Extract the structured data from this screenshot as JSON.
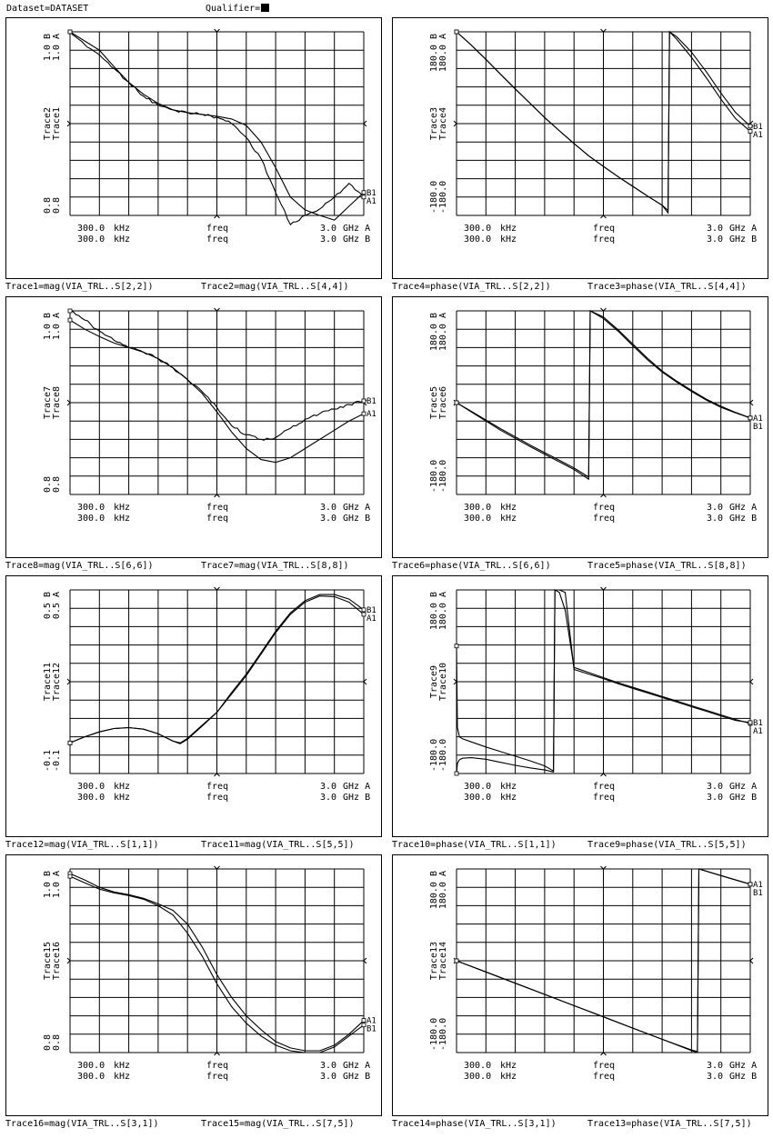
{
  "header": {
    "dataset": "Dataset=DATASET",
    "qualifier": "Qualifier="
  },
  "chart_data": [
    {
      "type": "line",
      "ytop": [
        "1.0 B",
        "1.0 A"
      ],
      "ybottom": [
        "0.8",
        "0.8"
      ],
      "ylabels": [
        "Trace2",
        "Trace1"
      ],
      "xinfo": [
        {
          "start": "300.0",
          "start_unit": "kHz",
          "mid": "freq",
          "stop": "3.0",
          "stop_unit": "GHz A"
        },
        {
          "start": "300.0",
          "start_unit": "kHz",
          "mid": "freq",
          "stop": "3.0",
          "stop_unit": "GHz B"
        }
      ],
      "captions": [
        "Trace1=mag(VIA_TRL..S[2,2])",
        "Trace2=mag(VIA_TRL..S[4,4])"
      ],
      "x": [
        0,
        0.05,
        0.1,
        0.15,
        0.2,
        0.25,
        0.3,
        0.35,
        0.4,
        0.45,
        0.5,
        0.55,
        0.6,
        0.65,
        0.7,
        0.75,
        0.8,
        0.85,
        0.9,
        0.95,
        1
      ],
      "series": [
        {
          "name": "A1",
          "noisy": true,
          "values": [
            1.0,
            0.986,
            0.975,
            0.96,
            0.945,
            0.93,
            0.92,
            0.915,
            0.912,
            0.91,
            0.907,
            0.9,
            0.885,
            0.862,
            0.825,
            0.79,
            0.8,
            0.807,
            0.82,
            0.835,
            0.82
          ]
        },
        {
          "name": "B1",
          "noisy": false,
          "values": [
            1.0,
            0.99,
            0.98,
            0.962,
            0.945,
            0.932,
            0.922,
            0.915,
            0.912,
            0.91,
            0.908,
            0.905,
            0.898,
            0.88,
            0.852,
            0.82,
            0.806,
            0.8,
            0.795,
            0.81,
            0.825
          ]
        }
      ]
    },
    {
      "type": "line",
      "ytop": [
        "180.0 B",
        "180.0 A"
      ],
      "ybottom": [
        "-180.0",
        "-180.0"
      ],
      "ylabels": [
        "Trace3",
        "Trace4"
      ],
      "xinfo": [
        {
          "start": "300.0",
          "start_unit": "kHz",
          "mid": "freq",
          "stop": "3.0",
          "stop_unit": "GHz A"
        },
        {
          "start": "300.0",
          "start_unit": "kHz",
          "mid": "freq",
          "stop": "3.0",
          "stop_unit": "GHz B"
        }
      ],
      "captions": [
        "Trace4=phase(VIA_TRL..S[2,2])",
        "Trace3=phase(VIA_TRL..S[4,4])"
      ],
      "x": [
        0,
        0.05,
        0.1,
        0.15,
        0.2,
        0.25,
        0.3,
        0.35,
        0.4,
        0.45,
        0.5,
        0.55,
        0.6,
        0.65,
        0.7,
        0.72,
        0.725,
        0.75,
        0.8,
        0.85,
        0.9,
        0.95,
        1
      ],
      "series": [
        {
          "name": "A1",
          "noisy": false,
          "values": [
            180,
            154,
            126,
            97,
            68,
            40,
            12,
            -14,
            -39,
            -63,
            -84,
            -104,
            -123,
            -142,
            -160,
            -170,
            180,
            165,
            130,
            90,
            48,
            10,
            -15
          ]
        },
        {
          "name": "B1",
          "noisy": false,
          "values": [
            180,
            154,
            126,
            97,
            68,
            40,
            12,
            -14,
            -39,
            -63,
            -84,
            -104,
            -123,
            -142,
            -160,
            -175,
            180,
            170,
            140,
            102,
            60,
            22,
            -5
          ]
        }
      ]
    },
    {
      "type": "line",
      "ytop": [
        "1.0 B",
        "1.0 A"
      ],
      "ybottom": [
        "0.8",
        "0.8"
      ],
      "ylabels": [
        "Trace7",
        "Trace8"
      ],
      "xinfo": [
        {
          "start": "300.0",
          "start_unit": "kHz",
          "mid": "freq",
          "stop": "3.0",
          "stop_unit": "GHz A"
        },
        {
          "start": "300.0",
          "start_unit": "kHz",
          "mid": "freq",
          "stop": "3.0",
          "stop_unit": "GHz B"
        }
      ],
      "captions": [
        "Trace8=mag(VIA_TRL..S[6,6])",
        "Trace7=mag(VIA_TRL..S[8,8])"
      ],
      "x": [
        0,
        0.05,
        0.1,
        0.15,
        0.2,
        0.25,
        0.3,
        0.35,
        0.4,
        0.45,
        0.5,
        0.55,
        0.6,
        0.65,
        0.7,
        0.75,
        0.8,
        0.85,
        0.9,
        0.95,
        1
      ],
      "series": [
        {
          "name": "A1",
          "noisy": false,
          "values": [
            0.99,
            0.98,
            0.972,
            0.965,
            0.96,
            0.955,
            0.948,
            0.938,
            0.925,
            0.91,
            0.89,
            0.868,
            0.85,
            0.838,
            0.835,
            0.84,
            0.85,
            0.86,
            0.87,
            0.88,
            0.888
          ]
        },
        {
          "name": "B1",
          "noisy": true,
          "values": [
            1.0,
            0.99,
            0.978,
            0.968,
            0.96,
            0.955,
            0.948,
            0.938,
            0.925,
            0.912,
            0.895,
            0.875,
            0.865,
            0.86,
            0.862,
            0.872,
            0.882,
            0.888,
            0.893,
            0.898,
            0.902
          ]
        }
      ]
    },
    {
      "type": "line",
      "ytop": [
        "180.0 B",
        "180.0 A"
      ],
      "ybottom": [
        "-180.0",
        "-180.0"
      ],
      "ylabels": [
        "Trace5",
        "Trace6"
      ],
      "xinfo": [
        {
          "start": "300.0",
          "start_unit": "kHz",
          "mid": "freq",
          "stop": "3.0",
          "stop_unit": "GHz A"
        },
        {
          "start": "300.0",
          "start_unit": "kHz",
          "mid": "freq",
          "stop": "3.0",
          "stop_unit": "GHz B"
        }
      ],
      "captions": [
        "Trace6=phase(VIA_TRL..S[6,6])",
        "Trace5=phase(VIA_TRL..S[8,8])"
      ],
      "x": [
        0,
        0.05,
        0.1,
        0.15,
        0.2,
        0.25,
        0.3,
        0.35,
        0.4,
        0.45,
        0.455,
        0.5,
        0.55,
        0.6,
        0.65,
        0.7,
        0.75,
        0.8,
        0.85,
        0.9,
        0.95,
        1
      ],
      "series": [
        {
          "name": "A1",
          "noisy": false,
          "values": [
            0,
            -18,
            -36,
            -54,
            -70,
            -86,
            -101,
            -116,
            -131,
            -150,
            180,
            165,
            140,
            112,
            84,
            60,
            40,
            22,
            5,
            -9,
            -20,
            -30
          ]
        },
        {
          "name": "B1",
          "noisy": false,
          "values": [
            0,
            -17,
            -34,
            -51,
            -67,
            -83,
            -98,
            -113,
            -128,
            -146,
            180,
            168,
            143,
            115,
            87,
            62,
            42,
            24,
            7,
            -7,
            -19,
            -30
          ]
        }
      ]
    },
    {
      "type": "line",
      "ytop": [
        "0.5 B",
        "0.5 A"
      ],
      "ybottom": [
        "-0.1",
        "-0.1"
      ],
      "ylabels": [
        "Trace11",
        "Trace12"
      ],
      "xinfo": [
        {
          "start": "300.0",
          "start_unit": "kHz",
          "mid": "freq",
          "stop": "3.0",
          "stop_unit": "GHz A"
        },
        {
          "start": "300.0",
          "start_unit": "kHz",
          "mid": "freq",
          "stop": "3.0",
          "stop_unit": "GHz B"
        }
      ],
      "captions": [
        "Trace12=mag(VIA_TRL..S[1,1])",
        "Trace11=mag(VIA_TRL..S[5,5])"
      ],
      "x": [
        0,
        0.05,
        0.1,
        0.15,
        0.2,
        0.25,
        0.3,
        0.35,
        0.375,
        0.4,
        0.45,
        0.5,
        0.55,
        0.6,
        0.65,
        0.7,
        0.75,
        0.8,
        0.85,
        0.9,
        0.95,
        1
      ],
      "series": [
        {
          "name": "A1",
          "noisy": false,
          "values": [
            0.0,
            0.02,
            0.036,
            0.047,
            0.05,
            0.045,
            0.03,
            0.006,
            -0.003,
            0.012,
            0.055,
            0.1,
            0.16,
            0.22,
            0.29,
            0.36,
            0.42,
            0.46,
            0.48,
            0.478,
            0.46,
            0.42
          ]
        },
        {
          "name": "B1",
          "noisy": false,
          "values": [
            0.0,
            0.02,
            0.036,
            0.047,
            0.05,
            0.045,
            0.03,
            0.006,
            0.0,
            0.015,
            0.058,
            0.1,
            0.165,
            0.225,
            0.295,
            0.365,
            0.425,
            0.465,
            0.485,
            0.485,
            0.47,
            0.435
          ]
        }
      ]
    },
    {
      "type": "line",
      "ytop": [
        "180.0 B",
        "180.0 A"
      ],
      "ybottom": [
        "-180.0",
        "-180.0"
      ],
      "ylabels": [
        "Trace9",
        "Trace10"
      ],
      "xinfo": [
        {
          "start": "300.0",
          "start_unit": "kHz",
          "mid": "freq",
          "stop": "3.0",
          "stop_unit": "GHz A"
        },
        {
          "start": "300.0",
          "start_unit": "kHz",
          "mid": "freq",
          "stop": "3.0",
          "stop_unit": "GHz B"
        }
      ],
      "captions": [
        "Trace10=phase(VIA_TRL..S[1,1])",
        "Trace9=phase(VIA_TRL..S[5,5])"
      ],
      "x": [
        0,
        0.003,
        0.01,
        0.02,
        0.05,
        0.1,
        0.15,
        0.2,
        0.25,
        0.3,
        0.33,
        0.335,
        0.35,
        0.37,
        0.4,
        0.45,
        0.5,
        0.55,
        0.6,
        0.65,
        0.7,
        0.75,
        0.8,
        0.85,
        0.9,
        0.95,
        1
      ],
      "series": [
        {
          "name": "A1",
          "noisy": false,
          "values": [
            -180,
            -160,
            -153,
            -150,
            -149,
            -152,
            -158,
            -164,
            -169,
            -173,
            -177,
            180,
            175,
            140,
            28,
            18,
            8,
            -2,
            -11,
            -20,
            -29,
            -38,
            -47,
            -56,
            -65,
            -74,
            -82
          ]
        },
        {
          "name": "B1",
          "noisy": false,
          "values": [
            70,
            -90,
            -108,
            -112,
            -118,
            -128,
            -137,
            -146,
            -155,
            -165,
            -175,
            180,
            180,
            175,
            24,
            15,
            6,
            -4,
            -13,
            -22,
            -31,
            -40,
            -49,
            -58,
            -67,
            -76,
            -80
          ]
        }
      ]
    },
    {
      "type": "line",
      "ytop": [
        "1.0 B",
        "1.0 A"
      ],
      "ybottom": [
        "0.8",
        "0.8"
      ],
      "ylabels": [
        "Trace15",
        "Trace16"
      ],
      "xinfo": [
        {
          "start": "300.0",
          "start_unit": "kHz",
          "mid": "freq",
          "stop": "3.0",
          "stop_unit": "GHz A"
        },
        {
          "start": "300.0",
          "start_unit": "kHz",
          "mid": "freq",
          "stop": "3.0",
          "stop_unit": "GHz B"
        }
      ],
      "captions": [
        "Trace16=mag(VIA_TRL..S[3,1])",
        "Trace15=mag(VIA_TRL..S[7,5])"
      ],
      "x": [
        0,
        0.05,
        0.1,
        0.15,
        0.2,
        0.25,
        0.3,
        0.35,
        0.4,
        0.45,
        0.5,
        0.55,
        0.6,
        0.65,
        0.7,
        0.75,
        0.8,
        0.85,
        0.9,
        0.95,
        1
      ],
      "series": [
        {
          "name": "A1",
          "noisy": false,
          "values": [
            0.995,
            0.988,
            0.98,
            0.975,
            0.972,
            0.968,
            0.962,
            0.955,
            0.94,
            0.915,
            0.885,
            0.86,
            0.84,
            0.825,
            0.812,
            0.805,
            0.802,
            0.802,
            0.808,
            0.82,
            0.835
          ]
        },
        {
          "name": "B1",
          "noisy": false,
          "values": [
            0.992,
            0.985,
            0.978,
            0.974,
            0.971,
            0.967,
            0.96,
            0.95,
            0.93,
            0.905,
            0.875,
            0.85,
            0.832,
            0.818,
            0.808,
            0.802,
            0.8,
            0.8,
            0.806,
            0.818,
            0.83
          ]
        }
      ]
    },
    {
      "type": "line",
      "ytop": [
        "180.0 B",
        "180.0 A"
      ],
      "ybottom": [
        "-180.0",
        "-180.0"
      ],
      "ylabels": [
        "Trace13",
        "Trace14"
      ],
      "xinfo": [
        {
          "start": "300.0",
          "start_unit": "kHz",
          "mid": "freq",
          "stop": "3.0",
          "stop_unit": "GHz A"
        },
        {
          "start": "300.0",
          "start_unit": "kHz",
          "mid": "freq",
          "stop": "3.0",
          "stop_unit": "GHz B"
        }
      ],
      "captions": [
        "Trace14=phase(VIA_TRL..S[3,1])",
        "Trace13=phase(VIA_TRL..S[7,5])"
      ],
      "x": [
        0,
        0.1,
        0.2,
        0.3,
        0.4,
        0.5,
        0.6,
        0.7,
        0.8,
        0.82,
        0.825,
        0.9,
        1
      ],
      "series": [
        {
          "name": "A1",
          "noisy": false,
          "values": [
            0,
            -22,
            -44,
            -66,
            -88,
            -110,
            -132,
            -154,
            -176,
            -180,
            180,
            167,
            150
          ]
        },
        {
          "name": "B1",
          "noisy": false,
          "values": [
            0,
            -22,
            -44,
            -66,
            -88,
            -110,
            -132,
            -154,
            -175,
            -178,
            180,
            167,
            150
          ]
        }
      ]
    }
  ]
}
